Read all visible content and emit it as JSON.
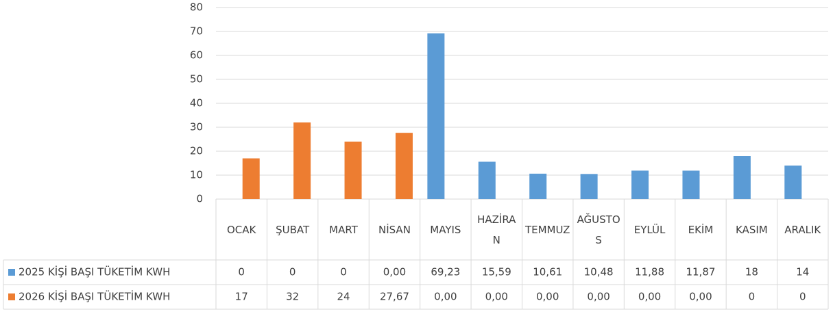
{
  "chart_data": {
    "type": "bar",
    "categories": [
      "OCAK",
      "ŞUBAT",
      "MART",
      "NİSAN",
      "MAYIS",
      "HAZİRAN",
      "TEMMUZ",
      "AĞUSTOS",
      "EYLÜL",
      "EKİM",
      "KASIM",
      "ARALIK"
    ],
    "series": [
      {
        "name": "2025 KİŞİ BAŞI TÜKETİM KWH",
        "color": "#5b9bd5",
        "values": [
          0,
          0,
          0,
          0,
          69.23,
          15.59,
          10.61,
          10.48,
          11.88,
          11.87,
          18,
          14
        ],
        "value_labels": [
          "0",
          "0",
          "0",
          "0,00",
          "69,23",
          "15,59",
          "10,61",
          "10,48",
          "11,88",
          "11,87",
          "18",
          "14"
        ]
      },
      {
        "name": "2026 KİŞİ BAŞI TÜKETİM KWH",
        "color": "#ed7d31",
        "values": [
          17,
          32,
          24,
          27.67,
          0,
          0,
          0,
          0,
          0,
          0,
          0,
          0
        ],
        "value_labels": [
          "17",
          "32",
          "24",
          "27,67",
          "0,00",
          "0,00",
          "0,00",
          "0,00",
          "0,00",
          "0,00",
          "0",
          "0"
        ]
      }
    ],
    "ylim": [
      0,
      80
    ],
    "yticks": [
      0,
      10,
      20,
      30,
      40,
      50,
      60,
      70,
      80
    ],
    "grid": true,
    "legend": "table"
  }
}
